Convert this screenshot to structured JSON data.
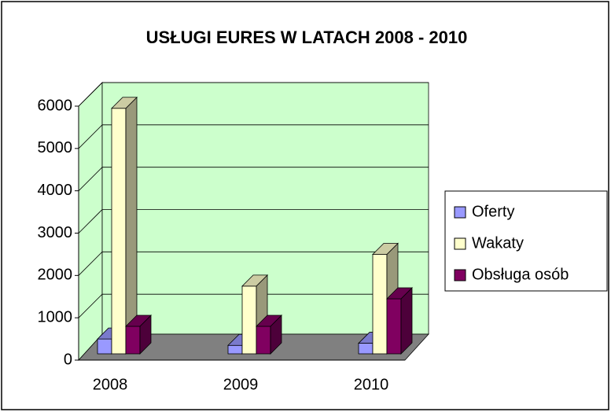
{
  "chart_data": {
    "type": "bar3d",
    "title": "USŁUGI EURES W LATACH 2008 - 2010",
    "categories": [
      "2008",
      "2009",
      "2010"
    ],
    "series": [
      {
        "name": "Oferty",
        "color": "#9999ff",
        "values": [
          350,
          200,
          250
        ]
      },
      {
        "name": "Wakaty",
        "color": "#ffffcc",
        "values": [
          5800,
          1600,
          2350
        ]
      },
      {
        "name": "Obsługa osób",
        "color": "#800060",
        "values": [
          650,
          650,
          1300
        ]
      }
    ],
    "ylim": [
      0,
      6000
    ],
    "yticks": [
      0,
      1000,
      2000,
      3000,
      4000,
      5000,
      6000
    ],
    "grid": true,
    "legend": "right"
  }
}
